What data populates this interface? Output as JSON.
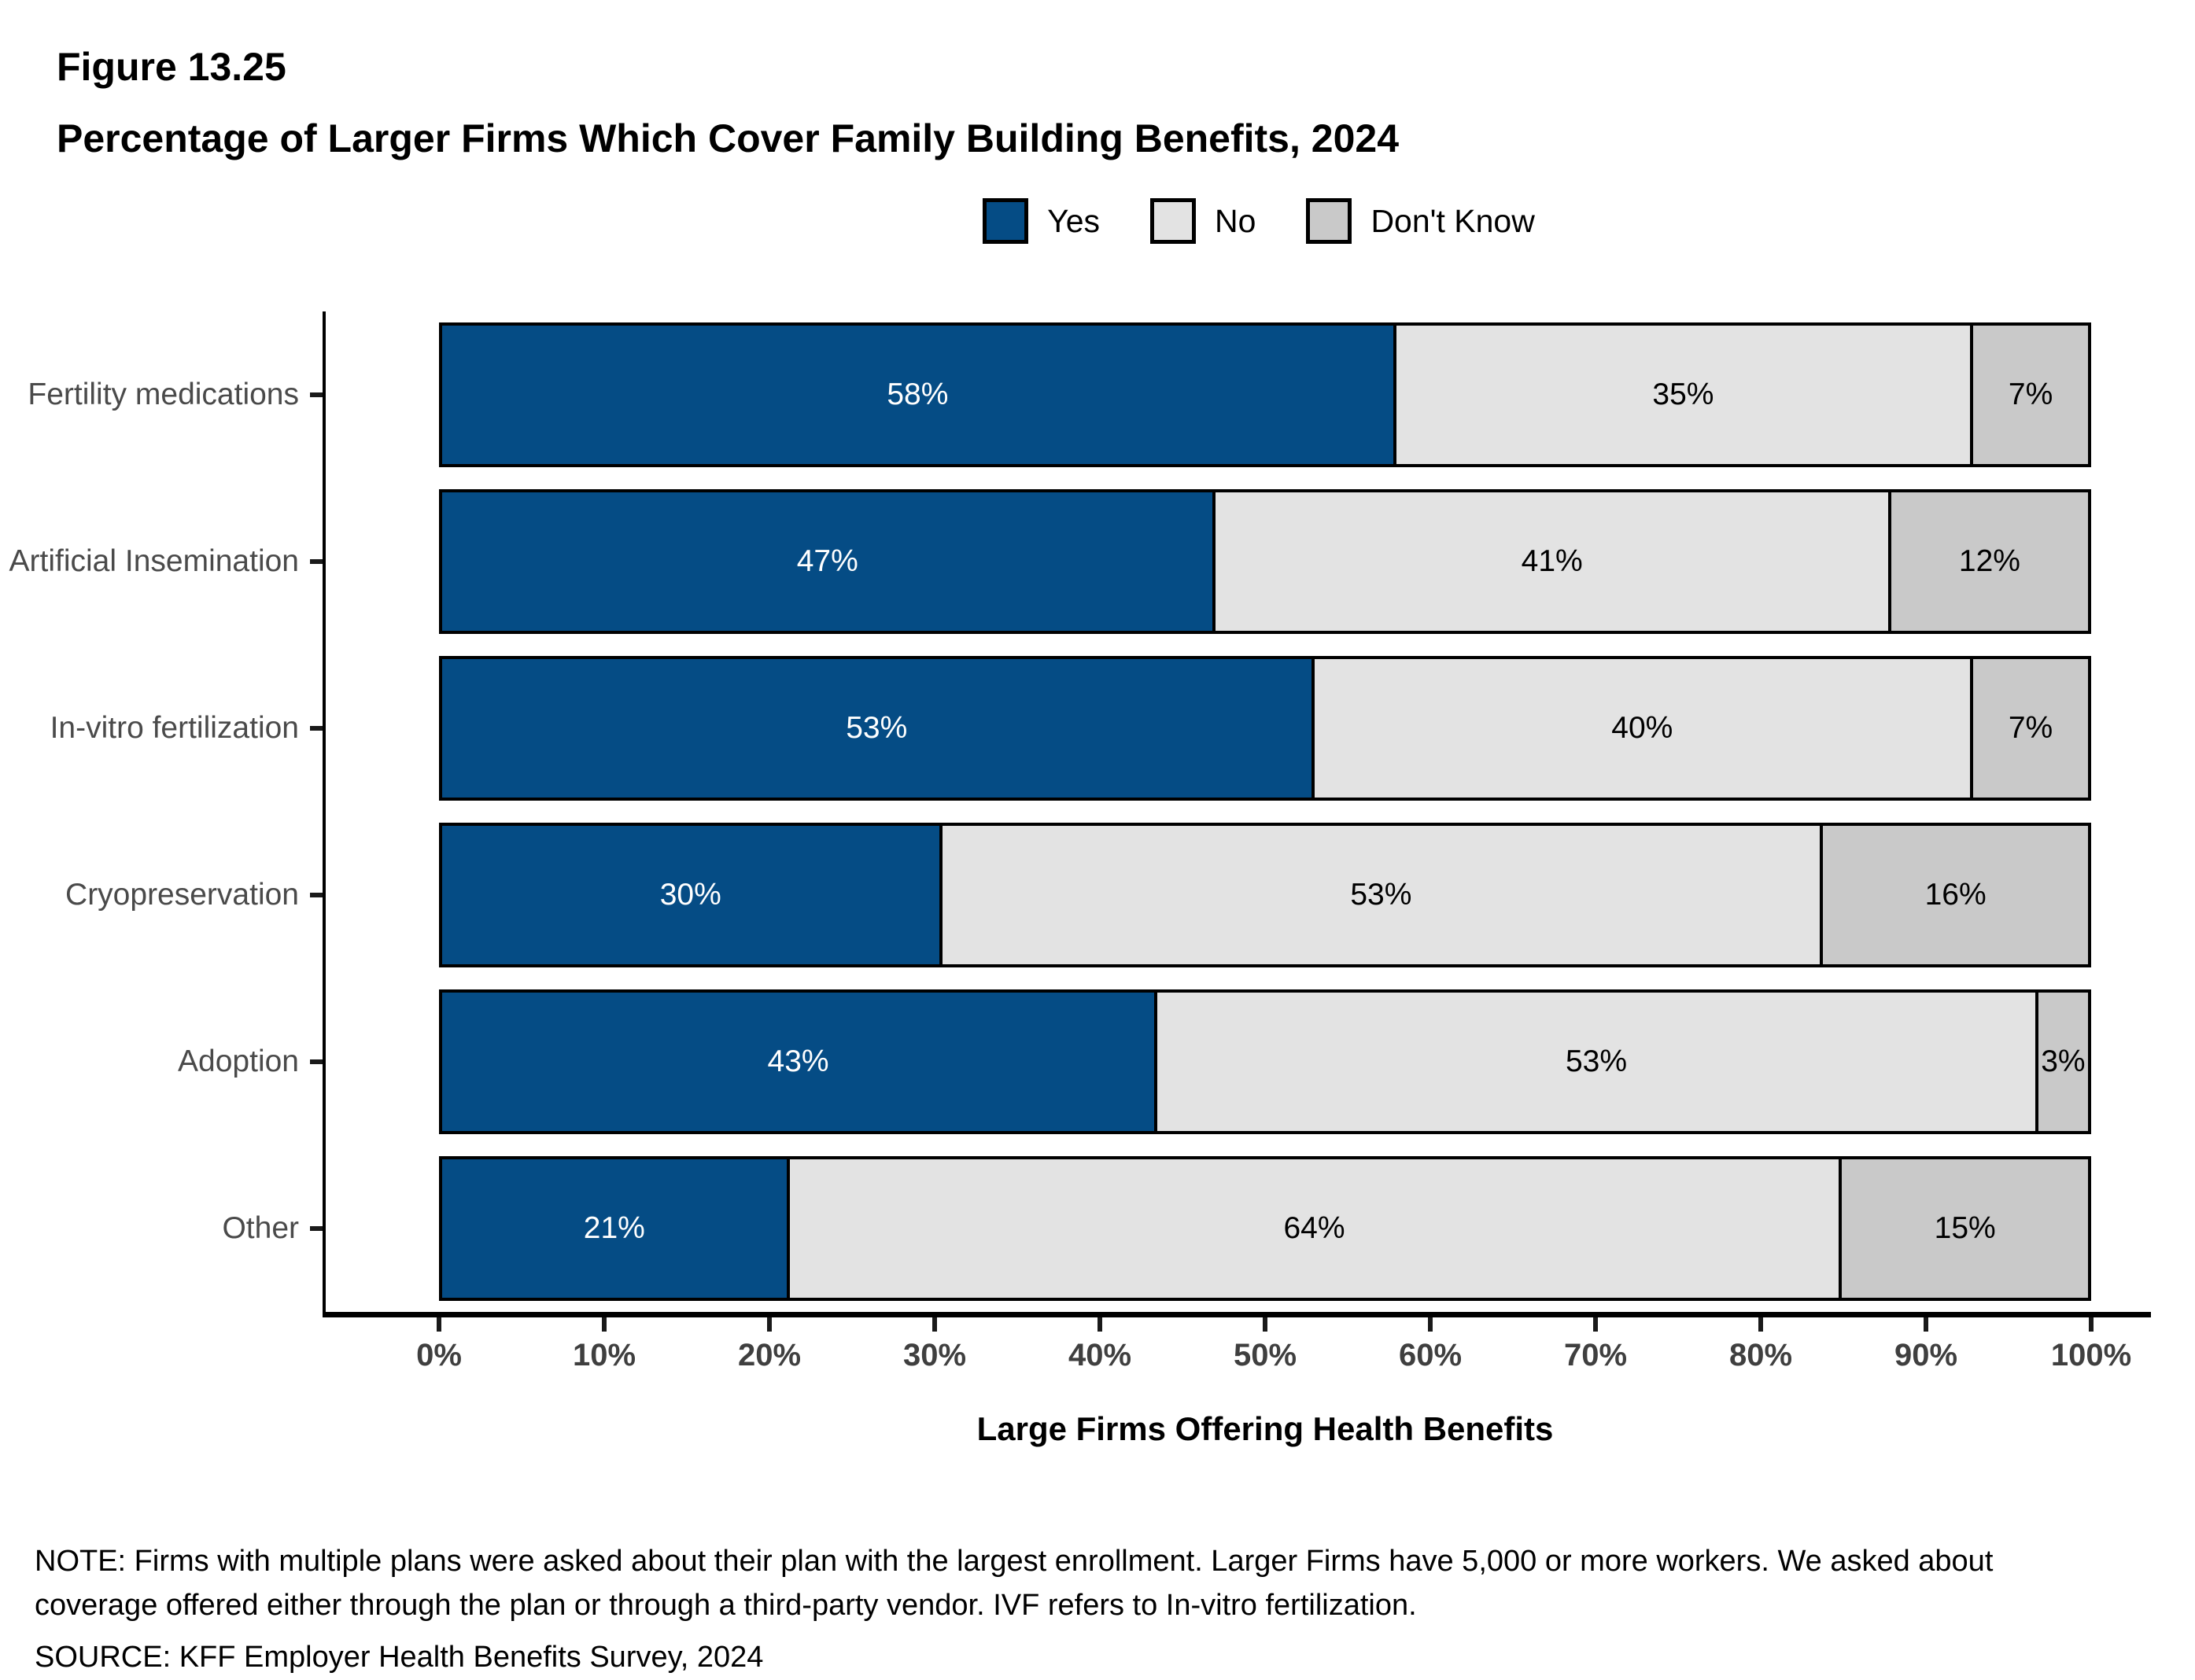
{
  "figure": {
    "label": "Figure 13.25",
    "title": "Percentage of Larger Firms Which Cover Family Building Benefits, 2024"
  },
  "legend": [
    {
      "label": "Yes",
      "color": "#054C85",
      "text_color": "#FFFFFF"
    },
    {
      "label": "No",
      "color": "#E3E3E3",
      "text_color": "#000000"
    },
    {
      "label": "Don't Know",
      "color": "#C9C9C9",
      "text_color": "#000000"
    }
  ],
  "chart_data": {
    "type": "bar",
    "orientation": "horizontal",
    "stacked": true,
    "title": "Percentage of Larger Firms Which Cover Family Building Benefits, 2024",
    "categories": [
      "Fertility medications",
      "Artificial Insemination",
      "In-vitro fertilization",
      "Cryopreservation",
      "Adoption",
      "Other"
    ],
    "series": [
      {
        "name": "Yes",
        "values": [
          58,
          47,
          53,
          30,
          43,
          21
        ]
      },
      {
        "name": "No",
        "values": [
          35,
          41,
          40,
          53,
          53,
          64
        ]
      },
      {
        "name": "Don't Know",
        "values": [
          7,
          12,
          7,
          16,
          3,
          15
        ]
      }
    ],
    "value_suffix": "%",
    "xlabel": "Large Firms Offering Health Benefits",
    "ylabel": "",
    "xlim": [
      0,
      100
    ],
    "x_ticks": [
      "0%",
      "10%",
      "20%",
      "30%",
      "40%",
      "50%",
      "60%",
      "70%",
      "80%",
      "90%",
      "100%"
    ],
    "grid": false,
    "legend_position": "top-center"
  },
  "notes": {
    "note_line": "NOTE: Firms with multiple plans were asked about their plan with the largest enrollment.  Larger Firms have 5,000 or more workers. We asked about coverage offered either through the plan or through a third-party vendor.  IVF refers to In-vitro fertilization.",
    "source_line": "SOURCE: KFF Employer Health Benefits Survey, 2024"
  },
  "colors": {
    "axis_line": "#000000",
    "tick_label": "#3F3F3F",
    "category_label": "#4A4A4A",
    "bar_border": "#000000",
    "background": "#FFFFFF"
  }
}
